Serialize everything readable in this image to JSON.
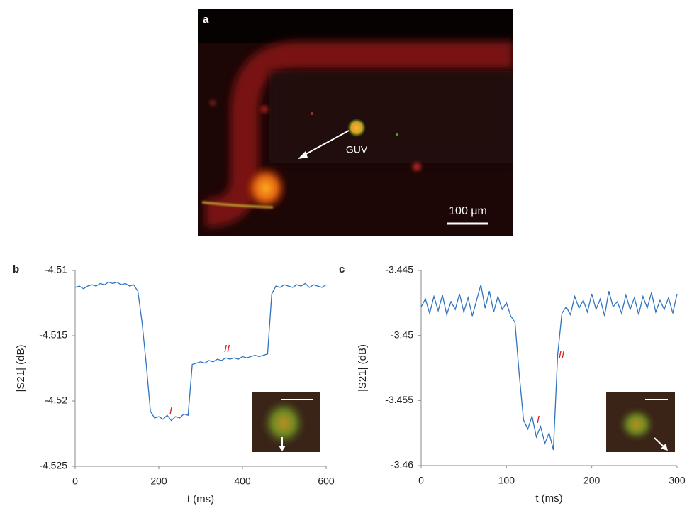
{
  "image": {
    "panel": "a",
    "annotation": "GUV",
    "scale_bar": "100 μm"
  },
  "chart_data": [
    {
      "type": "line",
      "panel": "b",
      "x_label": "t (ms)",
      "y_label": "|S21| (dB)",
      "color": "#2f74c0",
      "xlim": [
        0,
        600
      ],
      "xticks": [
        0,
        200,
        400,
        600
      ],
      "ylim": [
        -4.525,
        -4.51
      ],
      "yticks": [
        -4.51,
        -4.515,
        -4.52,
        -4.525
      ],
      "annotations": [
        "I",
        "II"
      ],
      "x": [
        0,
        10,
        20,
        30,
        40,
        50,
        60,
        70,
        80,
        90,
        100,
        110,
        120,
        130,
        140,
        150,
        160,
        170,
        180,
        190,
        200,
        210,
        220,
        230,
        240,
        250,
        260,
        270,
        280,
        290,
        300,
        310,
        320,
        330,
        340,
        350,
        360,
        370,
        380,
        390,
        400,
        410,
        420,
        430,
        440,
        450,
        460,
        470,
        480,
        490,
        500,
        510,
        520,
        530,
        540,
        550,
        560,
        570,
        580,
        590,
        600
      ],
      "values": [
        -4.5113,
        -4.5112,
        -4.5114,
        -4.5112,
        -4.5111,
        -4.5112,
        -4.511,
        -4.5111,
        -4.5109,
        -4.511,
        -4.5109,
        -4.5111,
        -4.511,
        -4.5112,
        -4.5111,
        -4.5116,
        -4.514,
        -4.5172,
        -4.5208,
        -4.5213,
        -4.5212,
        -4.5214,
        -4.5211,
        -4.5215,
        -4.5212,
        -4.5213,
        -4.521,
        -4.5211,
        -4.5172,
        -4.5171,
        -4.517,
        -4.5171,
        -4.5169,
        -4.517,
        -4.5168,
        -4.5169,
        -4.5167,
        -4.5168,
        -4.5167,
        -4.5168,
        -4.5166,
        -4.5167,
        -4.5166,
        -4.5165,
        -4.5166,
        -4.5165,
        -4.5164,
        -4.5118,
        -4.5112,
        -4.5113,
        -4.5111,
        -4.5112,
        -4.5113,
        -4.5111,
        -4.5112,
        -4.511,
        -4.5113,
        -4.5111,
        -4.5112,
        -4.5113,
        -4.5111
      ]
    },
    {
      "type": "line",
      "panel": "c",
      "x_label": "t (ms)",
      "y_label": "|S21| (dB)",
      "color": "#2f74c0",
      "xlim": [
        0,
        300
      ],
      "xticks": [
        0,
        100,
        200,
        300
      ],
      "ylim": [
        -3.46,
        -3.445
      ],
      "yticks": [
        -3.445,
        -3.45,
        -3.455,
        -3.46
      ],
      "annotations": [
        "I",
        "II"
      ],
      "x": [
        0,
        5,
        10,
        15,
        20,
        25,
        30,
        35,
        40,
        45,
        50,
        55,
        60,
        65,
        70,
        75,
        80,
        85,
        90,
        95,
        100,
        105,
        110,
        115,
        120,
        125,
        130,
        135,
        140,
        145,
        150,
        155,
        160,
        165,
        170,
        175,
        180,
        185,
        190,
        195,
        200,
        205,
        210,
        215,
        220,
        225,
        230,
        235,
        240,
        245,
        250,
        255,
        260,
        265,
        270,
        275,
        280,
        285,
        290,
        295,
        300
      ],
      "values": [
        -3.4478,
        -3.4472,
        -3.4483,
        -3.447,
        -3.4481,
        -3.4469,
        -3.4484,
        -3.4474,
        -3.448,
        -3.4468,
        -3.4482,
        -3.4471,
        -3.4485,
        -3.4473,
        -3.4461,
        -3.4479,
        -3.4466,
        -3.4482,
        -3.447,
        -3.448,
        -3.4475,
        -3.4485,
        -3.449,
        -3.453,
        -3.4565,
        -3.4572,
        -3.4562,
        -3.4578,
        -3.457,
        -3.4583,
        -3.4575,
        -3.4588,
        -3.4515,
        -3.4483,
        -3.4478,
        -3.4484,
        -3.447,
        -3.4479,
        -3.4473,
        -3.4482,
        -3.4468,
        -3.448,
        -3.4472,
        -3.4485,
        -3.4466,
        -3.4478,
        -3.4474,
        -3.4483,
        -3.4469,
        -3.448,
        -3.4471,
        -3.4484,
        -3.447,
        -3.4479,
        -3.4467,
        -3.4482,
        -3.4473,
        -3.448,
        -3.4471,
        -3.4483,
        -3.4468
      ]
    }
  ]
}
